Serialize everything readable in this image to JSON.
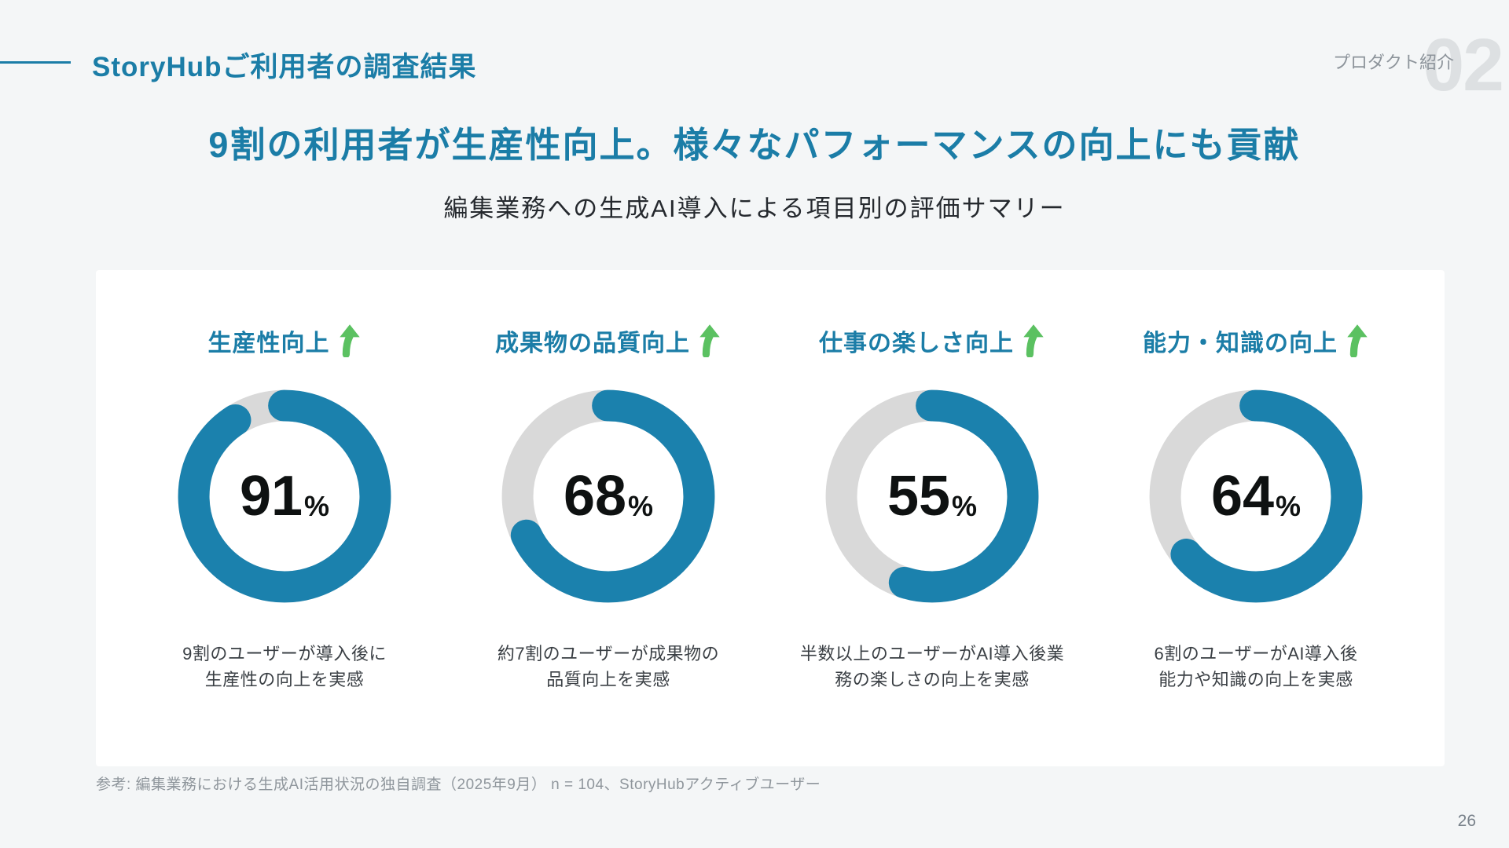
{
  "page": {
    "background": "#f4f6f7",
    "page_number": "26"
  },
  "header": {
    "title": "StoryHubご利用者の調査結果",
    "section_label": "プロダクト紹介",
    "section_number": "02",
    "accent_color": "#1b7da7"
  },
  "main": {
    "title_strong": "9割",
    "title_rest": "の利用者が生産性向上。様々なパフォーマンスの向上にも貢献",
    "subtitle": "編集業務への生成AI導入による項目別の評価サマリー"
  },
  "chart_data": {
    "type": "pie",
    "variant": "donut",
    "title": "編集業務への生成AI導入による項目別の評価サマリー",
    "unit": "%",
    "items": [
      {
        "label": "生産性向上",
        "value": 91,
        "unit": "%",
        "caption": [
          "9割のユーザーが導入後に",
          "生産性の向上を実感"
        ]
      },
      {
        "label": "成果物の品質向上",
        "value": 68,
        "unit": "%",
        "caption": [
          "約7割のユーザーが成果物の",
          "品質向上を実感"
        ]
      },
      {
        "label": "仕事の楽しさ向上",
        "value": 55,
        "unit": "%",
        "caption": [
          "半数以上のユーザーがAI導入後業",
          "務の楽しさの向上を実感"
        ]
      },
      {
        "label": "能力・知識の向上",
        "value": 64,
        "unit": "%",
        "caption": [
          "6割のユーザーがAI導入後",
          "能力や知識の向上を実感"
        ]
      }
    ],
    "colors": {
      "filled": "#1b81ad",
      "track": "#d9d9d9",
      "label": "#1b7da7",
      "arrow": "#5bc161",
      "value_text": "#0e1111"
    },
    "layout": {
      "start_angle_deg": 0,
      "direction": "clockwise",
      "legend": "none"
    }
  },
  "footnote": "参考: 編集業務における生成AI活用状況の独自調査（2025年9月） n = 104、StoryHubアクティブユーザー"
}
